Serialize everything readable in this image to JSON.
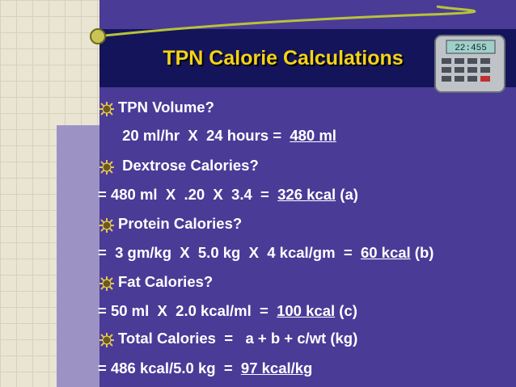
{
  "slide": {
    "title": "TPN Calorie Calculations",
    "calculator_display": "22:455",
    "lines": [
      {
        "text": "TPN Volume?"
      },
      {
        "text": " 20 ml/hr  X  24 hours =  ",
        "result": "480 ml"
      },
      {
        "text": " Dextrose Calories?"
      },
      {
        "text": "= 480 ml  X  .20  X  3.4  =  ",
        "result": "326 kcal",
        "suffix": " (a)"
      },
      {
        "text": "Protein Calories?"
      },
      {
        "text": "=  3 gm/kg  X  5.0 kg  X  4 kcal/gm  =  ",
        "result": "60 kcal",
        "suffix": " (b)"
      },
      {
        "text": "Fat Calories?"
      },
      {
        "text": "= 50 ml  X  2.0 kcal/ml  =  ",
        "result": "100 kcal",
        "suffix": " (c)"
      },
      {
        "text": "Total Calories  =   a + b + c/wt (kg)"
      },
      {
        "text": "= 486 kcal/5.0 kg  =  ",
        "result": "97 kcal/kg"
      }
    ]
  }
}
